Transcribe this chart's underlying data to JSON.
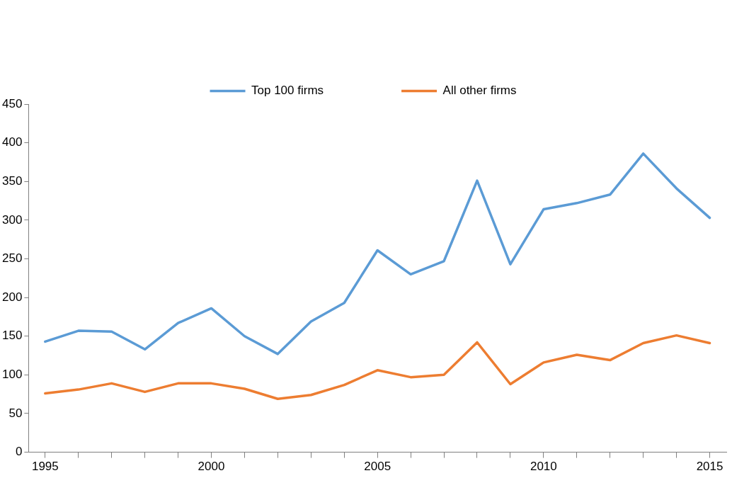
{
  "chart_data": {
    "type": "line",
    "x": [
      1995,
      1996,
      1997,
      1998,
      1999,
      2000,
      2001,
      2002,
      2003,
      2004,
      2005,
      2006,
      2007,
      2008,
      2009,
      2010,
      2011,
      2012,
      2013,
      2014,
      2015
    ],
    "series": [
      {
        "name": "Top 100 firms",
        "color": "#5b9bd5",
        "values": [
          143,
          157,
          156,
          133,
          167,
          186,
          150,
          127,
          169,
          193,
          261,
          230,
          247,
          351,
          243,
          314,
          322,
          333,
          386,
          341,
          303
        ]
      },
      {
        "name": "All other firms",
        "color": "#ed7d31",
        "values": [
          76,
          81,
          89,
          78,
          89,
          89,
          82,
          69,
          74,
          87,
          106,
          97,
          100,
          142,
          88,
          116,
          126,
          119,
          141,
          151,
          141
        ]
      }
    ],
    "xlim": [
      1994.5,
      2015.5
    ],
    "xticks": [
      1995,
      {
        "value": 1996,
        "label": null
      },
      {
        "value": 1997,
        "label": null
      },
      {
        "value": 1998,
        "label": null
      },
      {
        "value": 1999,
        "label": null
      },
      2000,
      {
        "value": 2001,
        "label": null
      },
      {
        "value": 2002,
        "label": null
      },
      {
        "value": 2003,
        "label": null
      },
      {
        "value": 2004,
        "label": null
      },
      2005,
      {
        "value": 2006,
        "label": null
      },
      {
        "value": 2007,
        "label": null
      },
      {
        "value": 2008,
        "label": null
      },
      {
        "value": 2009,
        "label": null
      },
      2010,
      {
        "value": 2011,
        "label": null
      },
      {
        "value": 2012,
        "label": null
      },
      {
        "value": 2013,
        "label": null
      },
      {
        "value": 2014,
        "label": null
      },
      2015
    ],
    "ylim": [
      0,
      450
    ],
    "yticks": [
      0,
      50,
      100,
      150,
      200,
      250,
      300,
      350,
      400,
      450
    ],
    "grid": false,
    "legend": "top",
    "marker": "none",
    "line_style": "solid"
  }
}
